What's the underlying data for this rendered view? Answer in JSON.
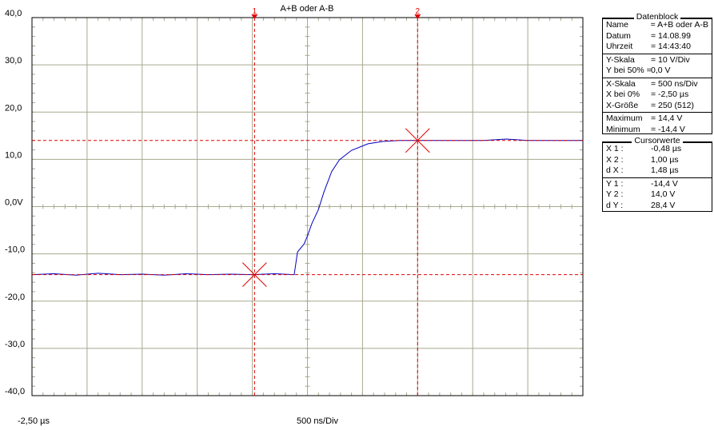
{
  "chart_data": {
    "type": "line",
    "title": "A+B oder A-B",
    "x": [
      -2.5,
      -2.3,
      -2.1,
      -1.9,
      -1.7,
      -1.5,
      -1.3,
      -1.1,
      -0.9,
      -0.7,
      -0.5,
      -0.3,
      -0.12,
      -0.09,
      -0.03,
      0.0,
      0.04,
      0.1,
      0.15,
      0.22,
      0.29,
      0.4,
      0.55,
      0.69,
      0.84,
      1.2,
      1.6,
      1.8,
      2.0,
      2.5
    ],
    "series": [
      {
        "name": "A+B oder A-B",
        "color": "#0000c0",
        "values": [
          -14.4,
          -14.2,
          -14.5,
          -14.1,
          -14.4,
          -14.3,
          -14.5,
          -14.2,
          -14.4,
          -14.3,
          -14.4,
          -14.2,
          -14.4,
          -9.6,
          -7.9,
          -6.2,
          -3.6,
          -0.6,
          3.1,
          7.4,
          9.9,
          11.9,
          13.3,
          13.8,
          14.0,
          14.0,
          14.0,
          14.3,
          14.0,
          14.0
        ]
      }
    ],
    "xlim": [
      -2.5,
      2.5
    ],
    "ylim": [
      -40,
      40
    ],
    "xgrid": [
      -2.5,
      -2.0,
      -1.5,
      -1.0,
      -0.5,
      0,
      0.5,
      1.0,
      1.5,
      2.0,
      2.5
    ],
    "yticks": [
      {
        "value": 40,
        "label": "40,0"
      },
      {
        "value": 30,
        "label": "30,0"
      },
      {
        "value": 20,
        "label": "20,0"
      },
      {
        "value": 10,
        "label": "10,0"
      },
      {
        "value": 0,
        "label": "0,0V"
      },
      {
        "value": -10,
        "label": "-10,0"
      },
      {
        "value": -20,
        "label": "-20,0"
      },
      {
        "value": -30,
        "label": "-30,0"
      },
      {
        "value": -40,
        "label": "-40,0"
      }
    ],
    "x_start_label": "-2,50 µs",
    "x_scale_label": "500 ns/Div",
    "grid": true,
    "cursors": [
      {
        "label": "1",
        "x": -0.48
      },
      {
        "label": "2",
        "x": 1.0
      }
    ],
    "hcursors": [
      -14.4,
      14.0
    ],
    "cursor_color": "#e00000"
  },
  "datenblock": {
    "title": "Datenblock",
    "groups": [
      [
        [
          "Name",
          "= A+B oder A-B"
        ],
        [
          "Datum",
          "= 14.08.99"
        ],
        [
          "Uhrzeit",
          "= 14:43:40"
        ]
      ],
      [
        [
          "Y-Skala",
          "= 10 V/Div"
        ],
        [
          "Y bei 50% =",
          "0,0 V"
        ]
      ],
      [
        [
          "X-Skala",
          "= 500 ns/Div"
        ],
        [
          "X bei 0%",
          "= -2,50 µs"
        ],
        [
          "X-Größe",
          "= 250 (512)"
        ]
      ],
      [
        [
          "Maximum",
          "= 14,4 V"
        ],
        [
          "Minimum",
          "= -14,4 V"
        ]
      ]
    ]
  },
  "cursorwerte": {
    "title": "Cursorwerte",
    "groups": [
      [
        [
          "X 1 :",
          "-0,48 µs"
        ],
        [
          "X 2 :",
          "1,00 µs"
        ],
        [
          "d X :",
          "1,48 µs"
        ]
      ],
      [
        [
          "Y 1 :",
          "-14,4 V"
        ],
        [
          "Y 2 :",
          "14,0 V"
        ],
        [
          "d Y :",
          "28,4 V"
        ]
      ]
    ]
  }
}
